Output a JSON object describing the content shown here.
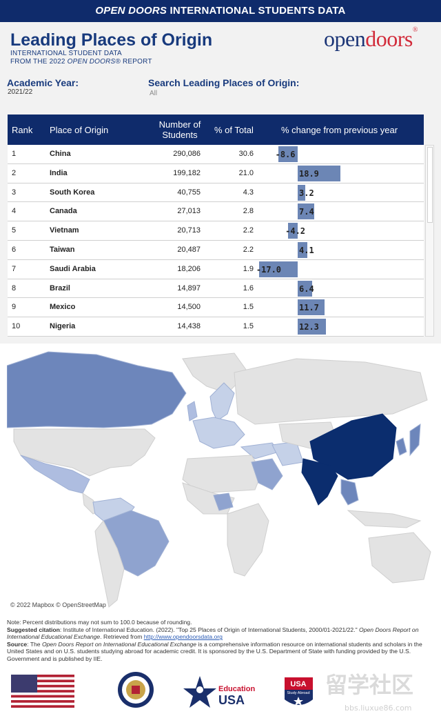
{
  "banner": {
    "italic": "OPEN DOORS",
    "rest": " INTERNATIONAL STUDENTS DATA"
  },
  "header": {
    "title": "Leading Places of Origin",
    "subtitle1": "INTERNATIONAL STUDENT DATA",
    "subtitle2_prefix": "FROM THE 2022 ",
    "subtitle2_italic": "OPEN DOORS®",
    "subtitle2_suffix": " REPORT",
    "logo_open": "open",
    "logo_doors": "doors"
  },
  "filters": {
    "year_label": "Academic Year:",
    "year_value": "2021/22",
    "search_label": "Search Leading Places of Origin:",
    "search_value": "All"
  },
  "table": {
    "columns": {
      "rank": "Rank",
      "place": "Place of Origin",
      "number_line1": "Number of",
      "number_line2": "Students",
      "pct": "% of Total",
      "change": "% change from previous year"
    },
    "rows": [
      {
        "rank": "1",
        "place": "China",
        "students": "290,086",
        "pct": "30.6",
        "change": -8.6,
        "change_label": "-8.6"
      },
      {
        "rank": "2",
        "place": "India",
        "students": "199,182",
        "pct": "21.0",
        "change": 18.9,
        "change_label": "18.9"
      },
      {
        "rank": "3",
        "place": "South Korea",
        "students": "40,755",
        "pct": "4.3",
        "change": 3.2,
        "change_label": "3.2"
      },
      {
        "rank": "4",
        "place": "Canada",
        "students": "27,013",
        "pct": "2.8",
        "change": 7.4,
        "change_label": "7.4"
      },
      {
        "rank": "5",
        "place": "Vietnam",
        "students": "20,713",
        "pct": "2.2",
        "change": -4.2,
        "change_label": "-4.2"
      },
      {
        "rank": "6",
        "place": "Taiwan",
        "students": "20,487",
        "pct": "2.2",
        "change": 4.1,
        "change_label": "4.1"
      },
      {
        "rank": "7",
        "place": "Saudi Arabia",
        "students": "18,206",
        "pct": "1.9",
        "change": -17.0,
        "change_label": "-17.0"
      },
      {
        "rank": "8",
        "place": "Brazil",
        "students": "14,897",
        "pct": "1.6",
        "change": 6.4,
        "change_label": "6.4"
      },
      {
        "rank": "9",
        "place": "Mexico",
        "students": "14,500",
        "pct": "1.5",
        "change": 11.7,
        "change_label": "11.7"
      },
      {
        "rank": "10",
        "place": "Nigeria",
        "students": "14,438",
        "pct": "1.5",
        "change": 12.3,
        "change_label": "12.3"
      }
    ]
  },
  "map": {
    "credit": "© 2022 Mapbox © OpenStreetMap"
  },
  "footer": {
    "note": "Note: Percent distributions may not sum to 100.0 because of rounding.",
    "citation_label": "Suggested citation",
    "citation_text": ": Institute of International Education. (2022). \"Top 25 Places of Origin of International Students, 2000/01-2021/22.\" ",
    "citation_italic": "Open Doors Report on International Educational Exchange",
    "citation_retrieved": ". Retrieved from ",
    "citation_link": "http://www.opendoorsdata.org",
    "source_label": "Source",
    "source_text1": ": The ",
    "source_italic": "Open Doors Report on International Educational Exchange",
    "source_text2": " is a comprehensive information resource on international students and scholars in the United States and on U.S. students studying abroad for academic credit. It is sponsored by the U.S. Department of State with funding provided by the U.S. Government and is published by IIE."
  },
  "logos": {
    "education_line1": "Education",
    "education_line2": "USA",
    "usa_line1": "USA",
    "usa_line2": "Study Abroad",
    "watermark": "留学社区",
    "watermark_url": "bbs.liuxue86.com"
  },
  "colors": {
    "navy": "#0f2b6b",
    "bar": "#6c86b5",
    "map_dark": "#0b2d6e",
    "map_mid": "#6d86bb",
    "map_light": "#c5d1e8",
    "land": "#e3e3e3"
  }
}
